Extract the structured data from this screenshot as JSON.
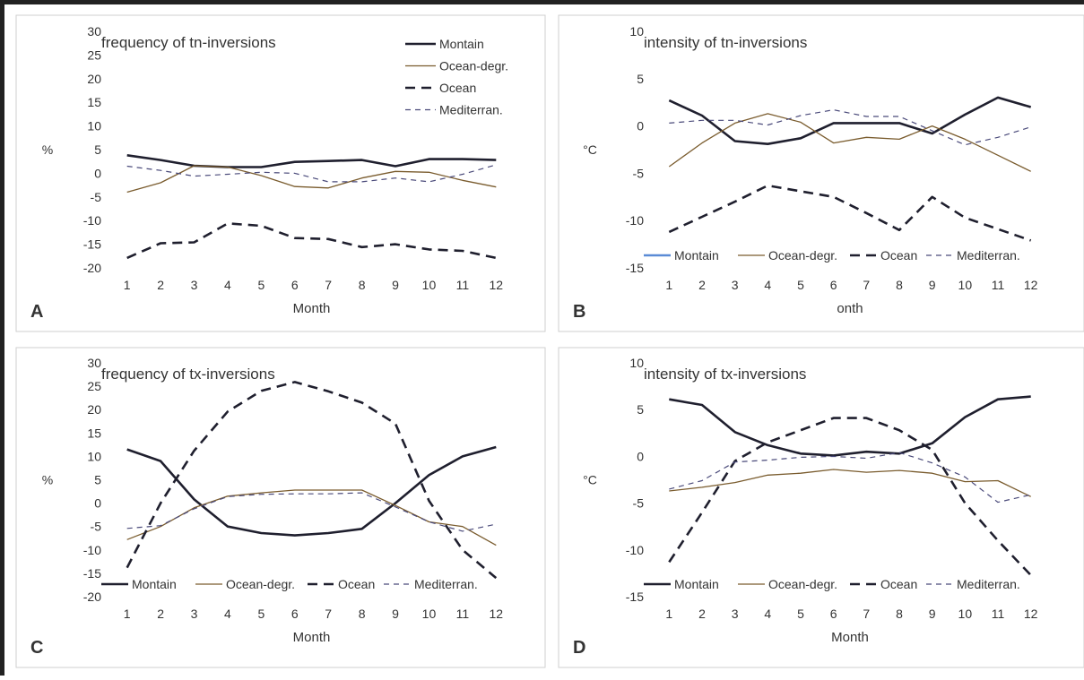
{
  "chart_data": [
    {
      "type": "line",
      "panel_letter": "A",
      "title": "frequency of tn-inversions",
      "xlabel": "Month",
      "ylabel": "%",
      "x": [
        1,
        2,
        3,
        4,
        5,
        6,
        7,
        8,
        9,
        10,
        11,
        12
      ],
      "ylim": [
        -20,
        30
      ],
      "ystep": 5,
      "grid": false,
      "legend_position": "top-right-vertical",
      "series": [
        {
          "name": "Montain",
          "style": "solid-thick",
          "color": "#1f1f2e",
          "values": [
            3.8,
            2.8,
            1.6,
            1.3,
            1.3,
            2.4,
            2.6,
            2.8,
            1.5,
            3.0,
            3.0,
            2.8
          ]
        },
        {
          "name": "Ocean-degr.",
          "style": "solid-thin",
          "color": "#7a5c2e",
          "values": [
            -4.0,
            -2.0,
            1.6,
            1.3,
            -0.5,
            -2.8,
            -3.1,
            -1.0,
            0.4,
            0.2,
            -1.5,
            -2.9
          ]
        },
        {
          "name": "Ocean",
          "style": "dash-thick",
          "color": "#1f1f2e",
          "values": [
            -17.9,
            -14.8,
            -14.6,
            -10.6,
            -11.1,
            -13.7,
            -13.9,
            -15.6,
            -15.0,
            -16.1,
            -16.4,
            -17.9
          ]
        },
        {
          "name": "Mediterran.",
          "style": "dash-thin",
          "color": "#4a4a7a",
          "values": [
            1.5,
            0.6,
            -0.6,
            -0.2,
            0.2,
            0.0,
            -1.8,
            -1.8,
            -1.0,
            -1.8,
            -0.2,
            1.8
          ]
        }
      ]
    },
    {
      "type": "line",
      "panel_letter": "B",
      "title": "intensity of tn-inversions",
      "xlabel": "onth",
      "ylabel": "°C",
      "x": [
        1,
        2,
        3,
        4,
        5,
        6,
        7,
        8,
        9,
        10,
        11,
        12
      ],
      "ylim": [
        -15,
        10
      ],
      "ystep": 5,
      "grid": false,
      "legend_position": "bottom-horizontal",
      "series": [
        {
          "name": "Montain",
          "style": "solid-thick",
          "legend_color": "#5b8bd6",
          "color": "#1f1f2e",
          "values": [
            2.7,
            1.1,
            -1.6,
            -1.9,
            -1.3,
            0.3,
            0.3,
            0.3,
            -0.8,
            1.2,
            3.0,
            2.0
          ]
        },
        {
          "name": "Ocean-degr.",
          "style": "solid-thin",
          "color": "#7a5c2e",
          "values": [
            -4.3,
            -1.8,
            0.3,
            1.3,
            0.4,
            -1.8,
            -1.2,
            -1.4,
            0.0,
            -1.4,
            -3.1,
            -4.8
          ]
        },
        {
          "name": "Ocean",
          "style": "dash-thick",
          "color": "#1f1f2e",
          "values": [
            -11.2,
            -9.6,
            -8.0,
            -6.3,
            -6.9,
            -7.5,
            -9.2,
            -11.0,
            -7.5,
            -9.7,
            -10.9,
            -12.1
          ]
        },
        {
          "name": "Mediterran.",
          "style": "dash-thin",
          "color": "#4a4a7a",
          "values": [
            0.3,
            0.6,
            0.6,
            0.1,
            1.1,
            1.7,
            1.0,
            1.0,
            -0.5,
            -2.0,
            -1.2,
            -0.1
          ]
        }
      ]
    },
    {
      "type": "line",
      "panel_letter": "C",
      "title": "frequency of tx-inversions",
      "xlabel": "Month",
      "ylabel": "%",
      "x": [
        1,
        2,
        3,
        4,
        5,
        6,
        7,
        8,
        9,
        10,
        11,
        12
      ],
      "ylim": [
        -20,
        30
      ],
      "ystep": 5,
      "grid": false,
      "legend_position": "bottom-horizontal",
      "series": [
        {
          "name": "Montain",
          "style": "solid-thick",
          "color": "#1f1f2e",
          "values": [
            11.5,
            9.0,
            0.8,
            -5.0,
            -6.4,
            -6.9,
            -6.4,
            -5.5,
            0.0,
            6.0,
            10.0,
            12.0
          ]
        },
        {
          "name": "Ocean-degr.",
          "style": "solid-thin",
          "color": "#7a5c2e",
          "values": [
            -7.8,
            -5.0,
            -1.0,
            1.5,
            2.2,
            2.8,
            2.8,
            2.8,
            -0.5,
            -4.0,
            -5.0,
            -9.0
          ]
        },
        {
          "name": "Ocean",
          "style": "dash-thick",
          "color": "#1f1f2e",
          "values": [
            -13.8,
            0.0,
            11.2,
            19.6,
            24.0,
            25.9,
            23.9,
            21.5,
            17.0,
            0.5,
            -10.0,
            -16.0
          ]
        },
        {
          "name": "Mediterran.",
          "style": "dash-thin",
          "color": "#4a4a7a",
          "values": [
            -5.4,
            -4.8,
            -1.2,
            1.4,
            1.9,
            2.0,
            2.0,
            2.2,
            -0.8,
            -4.0,
            -6.0,
            -4.5
          ]
        }
      ]
    },
    {
      "type": "line",
      "panel_letter": "D",
      "title": "intensity of tx-inversions",
      "xlabel": "Month",
      "ylabel": "°C",
      "x": [
        1,
        2,
        3,
        4,
        5,
        6,
        7,
        8,
        9,
        10,
        11,
        12
      ],
      "ylim": [
        -15,
        10
      ],
      "ystep": 5,
      "grid": false,
      "legend_position": "bottom-horizontal",
      "series": [
        {
          "name": "Montain",
          "style": "solid-thick",
          "color": "#1f1f2e",
          "values": [
            6.1,
            5.5,
            2.6,
            1.2,
            0.3,
            0.1,
            0.5,
            0.3,
            1.4,
            4.2,
            6.1,
            6.4
          ]
        },
        {
          "name": "Ocean-degr.",
          "style": "solid-thin",
          "color": "#7a5c2e",
          "values": [
            -3.7,
            -3.3,
            -2.8,
            -2.0,
            -1.8,
            -1.4,
            -1.7,
            -1.5,
            -1.8,
            -2.7,
            -2.6,
            -4.3
          ]
        },
        {
          "name": "Ocean",
          "style": "dash-thick",
          "color": "#1f1f2e",
          "values": [
            -11.3,
            -6.0,
            -0.5,
            1.5,
            2.8,
            4.1,
            4.1,
            2.8,
            0.7,
            -5.0,
            -9.0,
            -12.7
          ]
        },
        {
          "name": "Mediterran.",
          "style": "dash-thin",
          "color": "#4a4a7a",
          "values": [
            -3.5,
            -2.6,
            -0.6,
            -0.4,
            -0.1,
            0.0,
            -0.2,
            0.4,
            -0.7,
            -2.2,
            -4.9,
            -4.1
          ]
        }
      ]
    }
  ]
}
